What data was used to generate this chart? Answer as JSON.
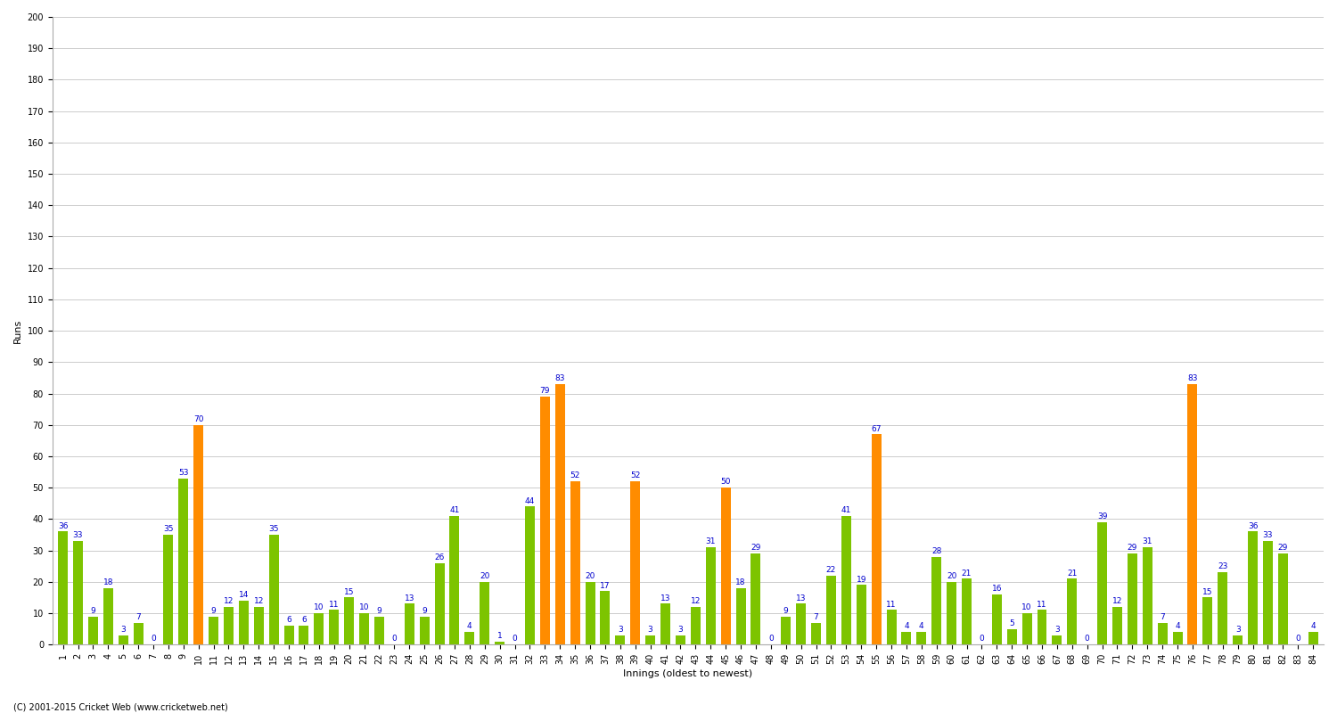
{
  "xlabel": "Innings (oldest to newest)",
  "ylabel": "Runs",
  "scores": [
    36,
    33,
    9,
    18,
    3,
    7,
    0,
    35,
    53,
    70,
    9,
    12,
    14,
    12,
    35,
    6,
    6,
    10,
    11,
    15,
    10,
    9,
    0,
    13,
    9,
    26,
    41,
    4,
    20,
    1,
    0,
    44,
    79,
    83,
    52,
    20,
    17,
    3,
    52,
    3,
    13,
    3,
    12,
    31,
    50,
    18,
    29,
    0,
    9,
    13,
    7,
    22,
    41,
    19,
    67,
    11,
    4,
    4,
    28,
    20,
    21,
    0,
    16,
    5,
    10,
    11,
    3,
    21,
    0,
    39,
    12,
    29,
    31,
    7,
    4,
    83,
    15,
    23,
    3,
    36,
    33,
    29,
    0,
    4
  ],
  "not_out": [
    false,
    false,
    false,
    false,
    false,
    false,
    false,
    false,
    false,
    true,
    false,
    false,
    false,
    false,
    false,
    false,
    false,
    false,
    false,
    false,
    false,
    false,
    false,
    false,
    false,
    false,
    false,
    false,
    false,
    false,
    false,
    false,
    true,
    true,
    true,
    false,
    false,
    false,
    true,
    false,
    false,
    false,
    false,
    false,
    true,
    false,
    false,
    false,
    false,
    false,
    false,
    false,
    false,
    false,
    true,
    false,
    false,
    false,
    false,
    false,
    false,
    false,
    false,
    false,
    false,
    false,
    false,
    false,
    false,
    false,
    false,
    false,
    false,
    false,
    false,
    true,
    false,
    false,
    false,
    false,
    false,
    false,
    false,
    false
  ],
  "bar_color_normal": "#7dc400",
  "bar_color_notout": "#ff8c00",
  "label_color": "#0000cd",
  "background_color": "#ffffff",
  "grid_color": "#cccccc",
  "ylim": [
    0,
    200
  ],
  "yticks": [
    0,
    10,
    20,
    30,
    40,
    50,
    60,
    70,
    80,
    90,
    100,
    110,
    120,
    130,
    140,
    150,
    160,
    170,
    180,
    190,
    200
  ],
  "footer": "(C) 2001-2015 Cricket Web (www.cricketweb.net)",
  "title_fontsize": 11,
  "label_fontsize": 8,
  "tick_fontsize": 7,
  "bar_label_fontsize": 6.5
}
